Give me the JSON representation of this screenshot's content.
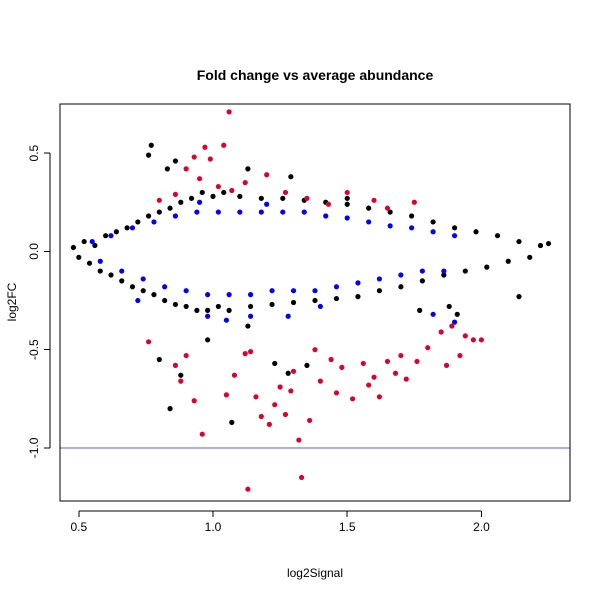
{
  "chart_data": {
    "type": "scatter",
    "title": "Fold change vs average abundance",
    "xlabel": "log2Signal",
    "ylabel": "log2FC",
    "xlim": [
      0.43,
      2.33
    ],
    "ylim": [
      -1.27,
      0.75
    ],
    "x_ticks": [
      {
        "value": 0.5,
        "label": "0.5"
      },
      {
        "value": 1.0,
        "label": "1.0"
      },
      {
        "value": 1.5,
        "label": "1.5"
      },
      {
        "value": 2.0,
        "label": "2.0"
      }
    ],
    "y_ticks": [
      {
        "value": 0.5,
        "label": "0.5"
      },
      {
        "value": 0.0,
        "label": "0.0"
      },
      {
        "value": -0.5,
        "label": "-0.5"
      },
      {
        "value": -1.0,
        "label": "-1.0"
      }
    ],
    "grid": false,
    "legend": "none",
    "reference_lines": [
      {
        "axis": "y",
        "value": -1.0,
        "color": "#5a5ae6"
      }
    ],
    "series": [
      {
        "color": "#000000",
        "points": [
          [
            0.48,
            0.02
          ],
          [
            0.5,
            -0.03
          ],
          [
            0.52,
            0.05
          ],
          [
            0.54,
            -0.06
          ],
          [
            0.56,
            0.03
          ],
          [
            0.58,
            -0.1
          ],
          [
            0.6,
            0.08
          ],
          [
            0.62,
            -0.12
          ],
          [
            0.64,
            0.1
          ],
          [
            0.66,
            -0.15
          ],
          [
            0.68,
            0.12
          ],
          [
            0.7,
            -0.18
          ],
          [
            0.72,
            0.15
          ],
          [
            0.74,
            -0.2
          ],
          [
            0.76,
            0.18
          ],
          [
            0.78,
            -0.22
          ],
          [
            0.8,
            0.2
          ],
          [
            0.82,
            -0.25
          ],
          [
            0.84,
            0.22
          ],
          [
            0.86,
            -0.27
          ],
          [
            0.88,
            0.25
          ],
          [
            0.9,
            -0.28
          ],
          [
            0.92,
            0.27
          ],
          [
            0.94,
            -0.3
          ],
          [
            0.96,
            0.3
          ],
          [
            0.98,
            -0.3
          ],
          [
            1.0,
            0.28
          ],
          [
            1.02,
            -0.28
          ],
          [
            1.04,
            0.3
          ],
          [
            1.06,
            -0.3
          ],
          [
            1.1,
            0.28
          ],
          [
            1.14,
            -0.28
          ],
          [
            1.18,
            0.27
          ],
          [
            1.22,
            -0.27
          ],
          [
            1.26,
            0.27
          ],
          [
            1.3,
            -0.26
          ],
          [
            1.34,
            0.26
          ],
          [
            1.38,
            -0.25
          ],
          [
            1.42,
            0.25
          ],
          [
            1.46,
            -0.24
          ],
          [
            1.5,
            0.24
          ],
          [
            1.54,
            -0.23
          ],
          [
            1.58,
            0.22
          ],
          [
            1.62,
            -0.2
          ],
          [
            1.66,
            0.2
          ],
          [
            1.7,
            -0.18
          ],
          [
            1.74,
            0.18
          ],
          [
            1.78,
            -0.15
          ],
          [
            1.82,
            0.15
          ],
          [
            1.86,
            -0.12
          ],
          [
            1.9,
            0.12
          ],
          [
            1.94,
            -0.1
          ],
          [
            1.98,
            0.1
          ],
          [
            2.02,
            -0.08
          ],
          [
            2.06,
            0.08
          ],
          [
            2.1,
            -0.05
          ],
          [
            2.14,
            0.05
          ],
          [
            2.18,
            -0.03
          ],
          [
            2.22,
            0.03
          ],
          [
            2.25,
            0.04
          ],
          [
            0.77,
            0.54
          ],
          [
            0.76,
            0.49
          ],
          [
            0.83,
            0.42
          ],
          [
            0.86,
            0.46
          ],
          [
            1.13,
            0.42
          ],
          [
            1.29,
            0.38
          ],
          [
            1.5,
            0.27
          ],
          [
            0.8,
            -0.55
          ],
          [
            0.88,
            -0.63
          ],
          [
            0.84,
            -0.8
          ],
          [
            1.07,
            -0.87
          ],
          [
            1.23,
            -0.57
          ],
          [
            1.35,
            -0.58
          ],
          [
            1.13,
            -0.38
          ],
          [
            1.77,
            -0.3
          ],
          [
            2.14,
            -0.23
          ],
          [
            1.88,
            -0.28
          ],
          [
            1.91,
            -0.32
          ],
          [
            1.28,
            -0.62
          ],
          [
            0.98,
            -0.45
          ]
        ]
      },
      {
        "color": "#0000ff",
        "points": [
          [
            0.55,
            0.05
          ],
          [
            0.58,
            -0.05
          ],
          [
            0.62,
            0.08
          ],
          [
            0.66,
            -0.1
          ],
          [
            0.7,
            0.12
          ],
          [
            0.74,
            -0.14
          ],
          [
            0.78,
            0.15
          ],
          [
            0.82,
            -0.18
          ],
          [
            0.86,
            0.18
          ],
          [
            0.9,
            -0.2
          ],
          [
            0.94,
            0.2
          ],
          [
            0.98,
            -0.22
          ],
          [
            1.02,
            0.2
          ],
          [
            1.06,
            -0.22
          ],
          [
            1.1,
            0.2
          ],
          [
            1.14,
            -0.22
          ],
          [
            1.18,
            0.2
          ],
          [
            1.22,
            -0.2
          ],
          [
            1.26,
            0.2
          ],
          [
            1.3,
            -0.2
          ],
          [
            1.34,
            0.2
          ],
          [
            1.38,
            -0.2
          ],
          [
            1.42,
            0.18
          ],
          [
            1.46,
            -0.18
          ],
          [
            1.5,
            0.17
          ],
          [
            1.54,
            -0.16
          ],
          [
            1.58,
            0.15
          ],
          [
            1.62,
            -0.14
          ],
          [
            1.66,
            0.13
          ],
          [
            1.7,
            -0.12
          ],
          [
            1.74,
            0.12
          ],
          [
            1.78,
            -0.1
          ],
          [
            1.82,
            0.1
          ],
          [
            1.86,
            -0.1
          ],
          [
            1.9,
            0.08
          ],
          [
            0.72,
            -0.25
          ],
          [
            0.98,
            -0.33
          ],
          [
            1.05,
            -0.35
          ],
          [
            1.14,
            -0.33
          ],
          [
            1.28,
            -0.33
          ],
          [
            1.4,
            -0.28
          ],
          [
            1.9,
            -0.36
          ],
          [
            1.82,
            -0.32
          ],
          [
            0.95,
            0.25
          ],
          [
            1.2,
            0.24
          ]
        ]
      },
      {
        "color": "#e0002a",
        "points": [
          [
            1.06,
            0.71
          ],
          [
            0.97,
            0.53
          ],
          [
            0.99,
            0.47
          ],
          [
            1.04,
            0.54
          ],
          [
            0.93,
            0.48
          ],
          [
            0.9,
            0.42
          ],
          [
            0.95,
            0.37
          ],
          [
            1.02,
            0.33
          ],
          [
            1.07,
            0.31
          ],
          [
            1.12,
            0.35
          ],
          [
            0.86,
            0.29
          ],
          [
            0.8,
            0.26
          ],
          [
            1.2,
            0.39
          ],
          [
            1.27,
            0.3
          ],
          [
            1.5,
            0.3
          ],
          [
            1.43,
            0.24
          ],
          [
            1.6,
            0.26
          ],
          [
            1.65,
            0.22
          ],
          [
            1.75,
            0.25
          ],
          [
            1.35,
            0.27
          ],
          [
            0.76,
            -0.46
          ],
          [
            0.86,
            -0.58
          ],
          [
            0.88,
            -0.66
          ],
          [
            0.93,
            -0.76
          ],
          [
            0.96,
            -0.93
          ],
          [
            0.9,
            -0.53
          ],
          [
            1.05,
            -0.73
          ],
          [
            1.08,
            -0.63
          ],
          [
            1.12,
            -0.52
          ],
          [
            1.14,
            -0.51
          ],
          [
            1.16,
            -0.74
          ],
          [
            1.18,
            -0.84
          ],
          [
            1.21,
            -0.88
          ],
          [
            1.23,
            -0.78
          ],
          [
            1.25,
            -0.69
          ],
          [
            1.27,
            -0.83
          ],
          [
            1.29,
            -0.71
          ],
          [
            1.3,
            -0.61
          ],
          [
            1.32,
            -0.96
          ],
          [
            1.33,
            -1.15
          ],
          [
            1.36,
            -0.86
          ],
          [
            1.38,
            -0.5
          ],
          [
            1.4,
            -0.66
          ],
          [
            1.44,
            -0.55
          ],
          [
            1.46,
            -0.72
          ],
          [
            1.48,
            -0.59
          ],
          [
            1.52,
            -0.75
          ],
          [
            1.56,
            -0.57
          ],
          [
            1.58,
            -0.68
          ],
          [
            1.6,
            -0.64
          ],
          [
            1.62,
            -0.74
          ],
          [
            1.65,
            -0.56
          ],
          [
            1.68,
            -0.62
          ],
          [
            1.7,
            -0.53
          ],
          [
            1.72,
            -0.65
          ],
          [
            1.76,
            -0.56
          ],
          [
            1.8,
            -0.49
          ],
          [
            1.85,
            -0.41
          ],
          [
            1.89,
            -0.38
          ],
          [
            1.94,
            -0.43
          ],
          [
            1.97,
            -0.45
          ],
          [
            2.0,
            -0.45
          ],
          [
            1.92,
            -0.53
          ],
          [
            1.87,
            -0.58
          ],
          [
            1.13,
            -1.21
          ]
        ]
      }
    ]
  }
}
